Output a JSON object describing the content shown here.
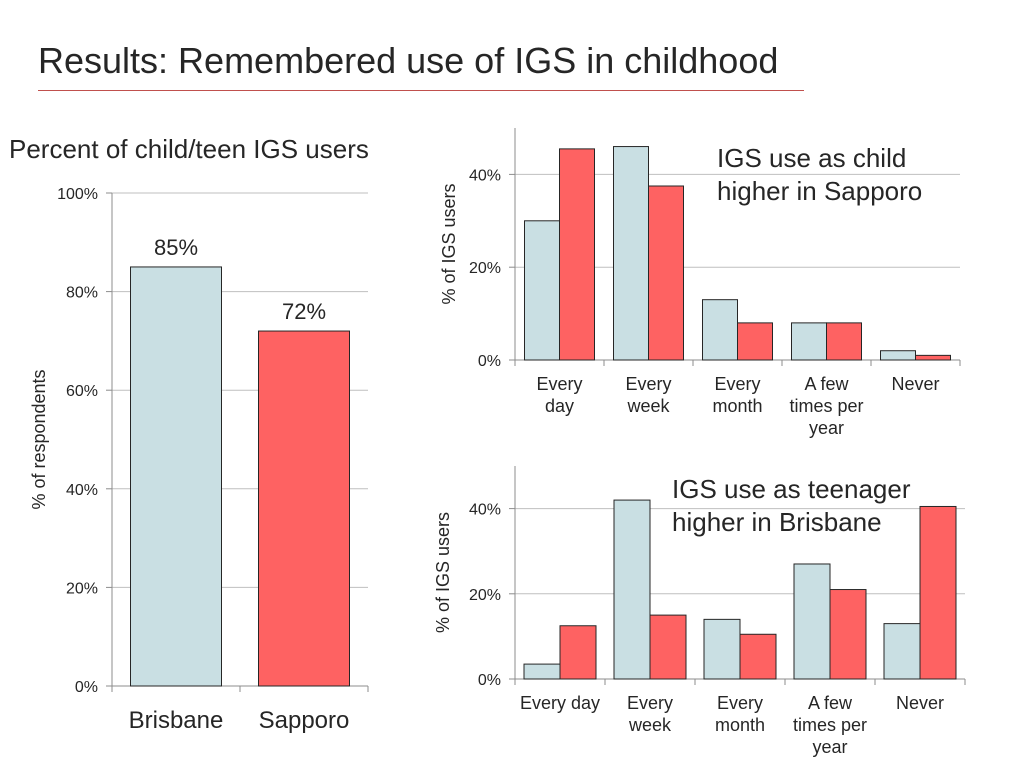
{
  "title": "Results: Remembered use of IGS in childhood",
  "left_subtitle": "Percent of child/teen IGS users",
  "callouts": {
    "child": [
      "IGS use as child",
      "higher in Sapporo"
    ],
    "teen": [
      "IGS use as teenager",
      "higher in Brisbane"
    ]
  },
  "colors": {
    "brisbane": "#c9dfe3",
    "sapporo": "#fe6262",
    "grid": "#bfbfbf",
    "axis": "#8c8c8c",
    "rule": "#c0504d"
  },
  "chart_data": [
    {
      "id": "overall",
      "type": "bar",
      "categories": [
        "Brisbane",
        "Sapporo"
      ],
      "values": [
        85,
        72
      ],
      "data_labels": [
        "85%",
        "72%"
      ],
      "bar_colors": [
        "#c9dfe3",
        "#fe6262"
      ],
      "ylabel": "% of respondents",
      "ylim": [
        0,
        100
      ],
      "yticks": [
        0,
        20,
        40,
        60,
        80,
        100
      ],
      "ytick_labels": [
        "0%",
        "20%",
        "40%",
        "60%",
        "80%",
        "100%"
      ],
      "grid": true
    },
    {
      "id": "child",
      "type": "bar",
      "categories": [
        [
          "Every",
          "day"
        ],
        [
          "Every",
          "week"
        ],
        [
          "Every",
          "month"
        ],
        [
          "A few",
          "times per",
          "year"
        ],
        [
          "Never"
        ]
      ],
      "series": [
        {
          "values": [
            30,
            46,
            13,
            8,
            2
          ],
          "color": "#c9dfe3"
        },
        {
          "values": [
            45.5,
            37.5,
            8,
            8,
            1
          ],
          "color": "#fe6262"
        }
      ],
      "ylabel": "% of IGS users",
      "ylim": [
        0,
        50
      ],
      "yticks": [
        0,
        20,
        40
      ],
      "ytick_labels": [
        "0%",
        "20%",
        "40%"
      ],
      "grid": true
    },
    {
      "id": "teen",
      "type": "bar",
      "categories": [
        [
          "Every day"
        ],
        [
          "Every",
          "week"
        ],
        [
          "Every",
          "month"
        ],
        [
          "A few",
          "times per",
          "year"
        ],
        [
          "Never"
        ]
      ],
      "series": [
        {
          "values": [
            3.5,
            42,
            14,
            27,
            13
          ],
          "color": "#c9dfe3"
        },
        {
          "values": [
            12.5,
            15,
            10.5,
            21,
            40.5
          ],
          "color": "#fe6262"
        }
      ],
      "ylabel": "% of IGS users",
      "ylim": [
        0,
        50
      ],
      "yticks": [
        0,
        20,
        40
      ],
      "ytick_labels": [
        "0%",
        "20%",
        "40%"
      ],
      "grid": true
    }
  ]
}
